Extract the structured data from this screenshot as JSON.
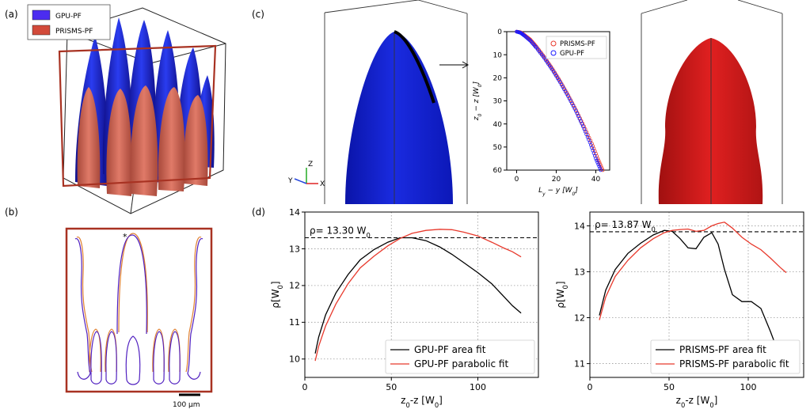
{
  "panels": {
    "a": "(a)",
    "b": "(b)",
    "c": "(c)",
    "d": "(d)"
  },
  "colors": {
    "gpu": "#1a1aff",
    "prisms": "#cc2222",
    "frame": "#a83222",
    "black_fit": "#000000",
    "red_fit": "#e8392c"
  },
  "panel_a": {
    "legend": [
      "GPU-PF",
      "PRISMS-PF"
    ]
  },
  "panel_b": {
    "scale_bar_label": "100 μm",
    "marker": "*"
  },
  "panel_c": {
    "triad": {
      "z": "Z",
      "y": "Y",
      "x": "X"
    }
  },
  "chart_data": [
    {
      "id": "c-inset",
      "type": "scatter",
      "xlabel": "L_y − y [W_0]",
      "ylabel": "z_0 − z [W_0]",
      "xlim": [
        -5,
        47
      ],
      "ylim": [
        0,
        60
      ],
      "y_inverted": true,
      "x_ticks": [
        0,
        20,
        40
      ],
      "y_ticks": [
        0,
        10,
        20,
        30,
        40,
        50,
        60
      ],
      "legend_position": "top-right",
      "series": [
        {
          "name": "PRISMS-PF",
          "marker": "open-circle",
          "color": "#e8392c",
          "x": [
            0,
            2,
            4,
            7,
            10,
            14,
            18,
            22,
            26,
            30,
            34,
            38,
            41,
            43.5
          ],
          "y": [
            0,
            0.3,
            1.5,
            3.5,
            6.5,
            11,
            16,
            21.5,
            27.5,
            34,
            41,
            48.5,
            55,
            60
          ]
        },
        {
          "name": "GPU-PF",
          "marker": "open-circle",
          "color": "#1a1aff",
          "x": [
            0,
            2,
            4,
            7,
            10,
            14,
            18,
            22,
            26,
            30,
            33.5,
            37,
            40,
            42.5
          ],
          "y": [
            0,
            0.5,
            1.8,
            4,
            7,
            11.5,
            16.5,
            22,
            28,
            34.5,
            41,
            48,
            55,
            60
          ]
        }
      ]
    },
    {
      "id": "d-left",
      "type": "line",
      "xlabel": "z0-z [W0]",
      "ylabel": "ρ[W0]",
      "xlim": [
        0,
        135
      ],
      "ylim": [
        9.5,
        14
      ],
      "x_ticks": [
        0,
        50,
        100
      ],
      "y_ticks": [
        10,
        11,
        12,
        13,
        14
      ],
      "grid": true,
      "hline": {
        "value": 13.3,
        "label": "ρ= 13.30 W0"
      },
      "legend_position": "bottom-right",
      "series": [
        {
          "name": "GPU-PF area fit",
          "color": "#000000",
          "x": [
            6,
            8,
            12,
            18,
            25,
            32,
            40,
            48,
            55,
            62,
            70,
            78,
            85,
            92,
            100,
            108,
            115,
            120,
            125
          ],
          "y": [
            10.15,
            10.6,
            11.2,
            11.8,
            12.3,
            12.7,
            12.98,
            13.18,
            13.3,
            13.3,
            13.22,
            13.05,
            12.85,
            12.62,
            12.35,
            12.05,
            11.7,
            11.45,
            11.25
          ]
        },
        {
          "name": "GPU-PF parabolic fit",
          "color": "#e8392c",
          "x": [
            6,
            8,
            12,
            18,
            25,
            32,
            40,
            48,
            55,
            62,
            70,
            78,
            85,
            92,
            100,
            108,
            115,
            120,
            125
          ],
          "y": [
            9.95,
            10.35,
            10.9,
            11.5,
            12.05,
            12.48,
            12.8,
            13.08,
            13.28,
            13.42,
            13.5,
            13.53,
            13.52,
            13.45,
            13.35,
            13.18,
            13.02,
            12.92,
            12.78
          ]
        }
      ]
    },
    {
      "id": "d-right",
      "type": "line",
      "xlabel": "z0-z [W0]",
      "ylabel": "ρ[W0]",
      "xlim": [
        0,
        135
      ],
      "ylim": [
        10.7,
        14.3
      ],
      "x_ticks": [
        0,
        50,
        100
      ],
      "y_ticks": [
        11,
        12,
        13,
        14
      ],
      "grid": true,
      "hline": {
        "value": 13.87,
        "label": "ρ= 13.87 W0"
      },
      "legend_position": "bottom-right",
      "series": [
        {
          "name": "PRISMS-PF area fit",
          "color": "#000000",
          "x": [
            6,
            10,
            16,
            24,
            32,
            40,
            47,
            52,
            57,
            62,
            67,
            72,
            77,
            81,
            85,
            90,
            96,
            102,
            108,
            114,
            120,
            124
          ],
          "y": [
            12.05,
            12.6,
            13.05,
            13.4,
            13.62,
            13.8,
            13.9,
            13.88,
            13.72,
            13.52,
            13.5,
            13.75,
            13.85,
            13.6,
            13.05,
            12.5,
            12.35,
            12.35,
            12.2,
            11.7,
            11.15,
            10.9
          ]
        },
        {
          "name": "PRISMS-PF parabolic fit",
          "color": "#e8392c",
          "x": [
            6,
            10,
            16,
            24,
            32,
            40,
            47,
            52,
            57,
            62,
            67,
            72,
            77,
            81,
            85,
            90,
            96,
            102,
            108,
            114,
            120,
            124
          ],
          "y": [
            11.95,
            12.45,
            12.9,
            13.25,
            13.52,
            13.72,
            13.85,
            13.9,
            13.92,
            13.93,
            13.88,
            13.9,
            14.0,
            14.05,
            14.08,
            13.95,
            13.75,
            13.6,
            13.48,
            13.3,
            13.1,
            12.98
          ]
        }
      ]
    }
  ]
}
